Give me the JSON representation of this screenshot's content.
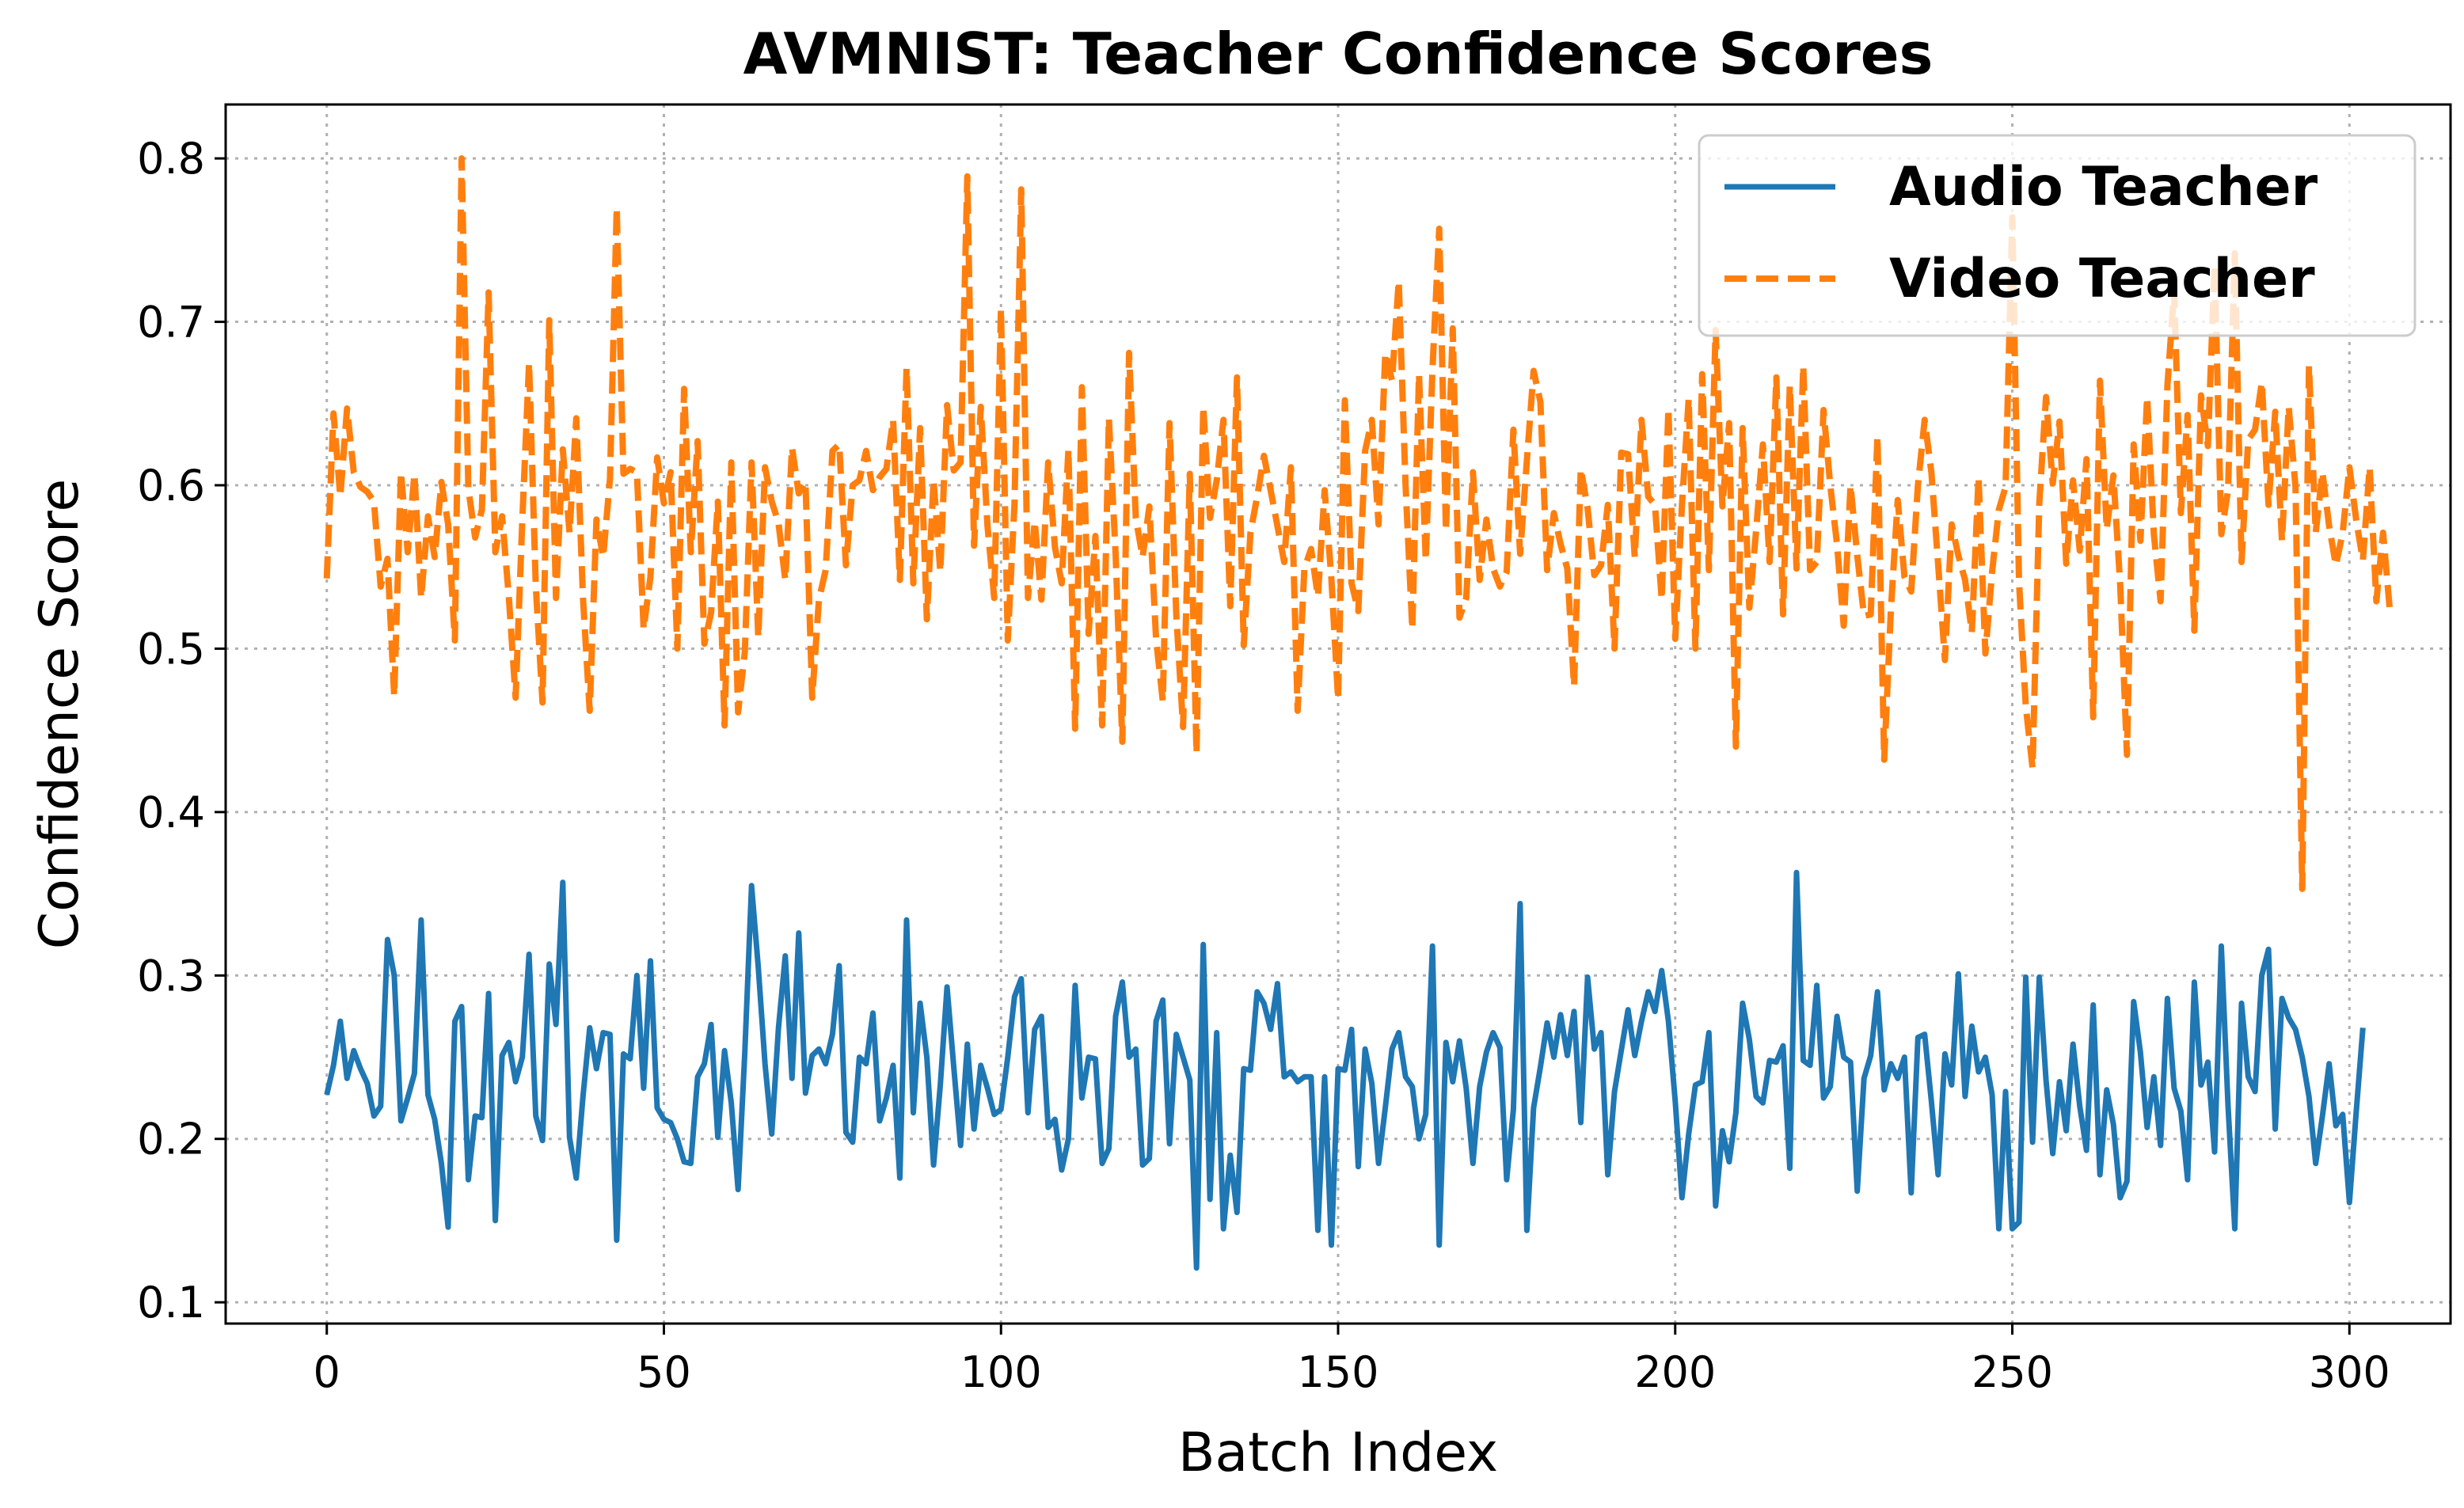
{
  "chart_data": {
    "type": "line",
    "title": "AVMNIST: Teacher Confidence Scores",
    "xlabel": "Batch Index",
    "ylabel": "Confidence Score",
    "xlim": [
      -15,
      315
    ],
    "ylim": [
      0.087,
      0.833
    ],
    "xticks": [
      0,
      50,
      100,
      150,
      200,
      250,
      300
    ],
    "yticks": [
      0.1,
      0.2,
      0.3,
      0.4,
      0.5,
      0.6,
      0.7,
      0.8
    ],
    "xtick_labels": [
      "0",
      "50",
      "100",
      "150",
      "200",
      "250",
      "300"
    ],
    "ytick_labels": [
      "0.1",
      "0.2",
      "0.3",
      "0.4",
      "0.5",
      "0.6",
      "0.7",
      "0.8"
    ],
    "grid": true,
    "legend_position": "top-right",
    "series": [
      {
        "name": "Audio Teacher",
        "color": "#1f77b4",
        "style": "solid",
        "x_start": 0,
        "x_step": 1,
        "values": [
          0.227,
          0.245,
          0.272,
          0.237,
          0.254,
          0.243,
          0.234,
          0.214,
          0.22,
          0.322,
          0.3,
          0.211,
          0.225,
          0.24,
          0.334,
          0.227,
          0.212,
          0.185,
          0.146,
          0.272,
          0.281,
          0.175,
          0.214,
          0.213,
          0.289,
          0.15,
          0.251,
          0.259,
          0.235,
          0.25,
          0.313,
          0.214,
          0.199,
          0.307,
          0.27,
          0.357,
          0.201,
          0.176,
          0.226,
          0.268,
          0.243,
          0.265,
          0.264,
          0.138,
          0.252,
          0.249,
          0.3,
          0.231,
          0.309,
          0.219,
          0.212,
          0.21,
          0.2,
          0.186,
          0.185,
          0.238,
          0.246,
          0.27,
          0.201,
          0.254,
          0.222,
          0.169,
          0.253,
          0.355,
          0.305,
          0.246,
          0.203,
          0.268,
          0.312,
          0.237,
          0.326,
          0.228,
          0.251,
          0.255,
          0.246,
          0.264,
          0.306,
          0.204,
          0.198,
          0.25,
          0.246,
          0.277,
          0.211,
          0.225,
          0.245,
          0.176,
          0.334,
          0.216,
          0.283,
          0.25,
          0.184,
          0.233,
          0.293,
          0.244,
          0.196,
          0.258,
          0.206,
          0.245,
          0.231,
          0.215,
          0.218,
          0.25,
          0.287,
          0.298,
          0.216,
          0.267,
          0.275,
          0.207,
          0.212,
          0.181,
          0.2,
          0.294,
          0.225,
          0.25,
          0.249,
          0.185,
          0.194,
          0.275,
          0.296,
          0.25,
          0.255,
          0.184,
          0.188,
          0.272,
          0.285,
          0.197,
          0.264,
          0.25,
          0.236,
          0.121,
          0.319,
          0.163,
          0.265,
          0.145,
          0.19,
          0.155,
          0.243,
          0.242,
          0.29,
          0.283,
          0.267,
          0.295,
          0.238,
          0.241,
          0.235,
          0.238,
          0.238,
          0.144,
          0.238,
          0.135,
          0.243,
          0.242,
          0.267,
          0.183,
          0.255,
          0.234,
          0.185,
          0.219,
          0.255,
          0.265,
          0.238,
          0.232,
          0.2,
          0.215,
          0.318,
          0.135,
          0.259,
          0.235,
          0.26,
          0.231,
          0.185,
          0.232,
          0.253,
          0.265,
          0.256,
          0.175,
          0.218,
          0.344,
          0.144,
          0.219,
          0.244,
          0.271,
          0.25,
          0.276,
          0.251,
          0.278,
          0.21,
          0.299,
          0.255,
          0.265,
          0.178,
          0.229,
          0.254,
          0.279,
          0.251,
          0.272,
          0.29,
          0.278,
          0.303,
          0.272,
          0.223,
          0.164,
          0.203,
          0.233,
          0.235,
          0.265,
          0.159,
          0.205,
          0.186,
          0.216,
          0.283,
          0.261,
          0.226,
          0.222,
          0.248,
          0.247,
          0.257,
          0.182,
          0.363,
          0.248,
          0.245,
          0.294,
          0.225,
          0.232,
          0.275,
          0.25,
          0.247,
          0.168,
          0.237,
          0.251,
          0.29,
          0.23,
          0.246,
          0.237,
          0.25,
          0.167,
          0.262,
          0.264,
          0.223,
          0.178,
          0.252,
          0.233,
          0.301,
          0.226,
          0.269,
          0.241,
          0.25,
          0.227,
          0.145,
          0.229,
          0.145,
          0.149,
          0.299,
          0.198,
          0.299,
          0.236,
          0.191,
          0.235,
          0.205,
          0.258,
          0.22,
          0.193,
          0.282,
          0.178,
          0.23,
          0.209,
          0.164,
          0.174,
          0.284,
          0.253,
          0.207,
          0.238,
          0.196,
          0.286,
          0.231,
          0.217,
          0.175,
          0.296,
          0.233,
          0.247,
          0.192,
          0.318,
          0.22,
          0.145,
          0.283,
          0.238,
          0.229,
          0.3,
          0.316,
          0.206,
          0.286,
          0.274,
          0.267,
          0.25,
          0.226,
          0.185,
          0.214,
          0.246,
          0.208,
          0.215,
          0.161,
          0.216,
          0.268
        ]
      },
      {
        "name": "Video Teacher",
        "color": "#ff7f0e",
        "style": "dashed",
        "x_start": 0,
        "x_step": 1,
        "values": [
          0.543,
          0.644,
          0.593,
          0.647,
          0.608,
          0.599,
          0.596,
          0.59,
          0.538,
          0.555,
          0.471,
          0.608,
          0.559,
          0.607,
          0.531,
          0.581,
          0.556,
          0.602,
          0.576,
          0.505,
          0.8,
          0.598,
          0.568,
          0.585,
          0.718,
          0.559,
          0.581,
          0.532,
          0.47,
          0.579,
          0.675,
          0.538,
          0.467,
          0.701,
          0.531,
          0.622,
          0.571,
          0.641,
          0.531,
          0.462,
          0.579,
          0.556,
          0.604,
          0.77,
          0.607,
          0.61,
          0.608,
          0.512,
          0.544,
          0.617,
          0.589,
          0.608,
          0.5,
          0.659,
          0.559,
          0.627,
          0.503,
          0.522,
          0.59,
          0.453,
          0.614,
          0.461,
          0.498,
          0.614,
          0.507,
          0.611,
          0.59,
          0.577,
          0.542,
          0.623,
          0.595,
          0.602,
          0.47,
          0.53,
          0.548,
          0.621,
          0.625,
          0.551,
          0.6,
          0.603,
          0.621,
          0.597,
          0.605,
          0.61,
          0.64,
          0.542,
          0.672,
          0.54,
          0.635,
          0.518,
          0.603,
          0.547,
          0.649,
          0.609,
          0.614,
          0.789,
          0.563,
          0.648,
          0.575,
          0.531,
          0.708,
          0.505,
          0.589,
          0.781,
          0.531,
          0.578,
          0.53,
          0.614,
          0.562,
          0.54,
          0.622,
          0.451,
          0.66,
          0.509,
          0.569,
          0.453,
          0.641,
          0.558,
          0.443,
          0.681,
          0.58,
          0.556,
          0.587,
          0.506,
          0.468,
          0.638,
          0.521,
          0.452,
          0.607,
          0.436,
          0.648,
          0.58,
          0.603,
          0.64,
          0.526,
          0.666,
          0.502,
          0.571,
          0.593,
          0.618,
          0.597,
          0.575,
          0.553,
          0.611,
          0.462,
          0.549,
          0.561,
          0.532,
          0.597,
          0.543,
          0.469,
          0.652,
          0.54,
          0.523,
          0.621,
          0.64,
          0.576,
          0.681,
          0.664,
          0.725,
          0.6,
          0.512,
          0.668,
          0.554,
          0.671,
          0.757,
          0.572,
          0.696,
          0.519,
          0.531,
          0.608,
          0.542,
          0.579,
          0.549,
          0.538,
          0.547,
          0.634,
          0.558,
          0.615,
          0.67,
          0.651,
          0.548,
          0.583,
          0.564,
          0.549,
          0.477,
          0.61,
          0.586,
          0.545,
          0.551,
          0.588,
          0.5,
          0.62,
          0.619,
          0.556,
          0.64,
          0.593,
          0.588,
          0.53,
          0.647,
          0.506,
          0.588,
          0.653,
          0.5,
          0.668,
          0.548,
          0.695,
          0.587,
          0.638,
          0.44,
          0.635,
          0.525,
          0.572,
          0.625,
          0.553,
          0.666,
          0.521,
          0.661,
          0.549,
          0.673,
          0.548,
          0.553,
          0.646,
          0.6,
          0.564,
          0.514,
          0.6,
          0.557,
          0.52,
          0.521,
          0.63,
          0.432,
          0.524,
          0.591,
          0.544,
          0.535,
          0.6,
          0.64,
          0.608,
          0.552,
          0.493,
          0.576,
          0.557,
          0.542,
          0.51,
          0.605,
          0.497,
          0.547,
          0.585,
          0.599,
          0.764,
          0.541,
          0.465,
          0.427,
          0.589,
          0.654,
          0.601,
          0.639,
          0.552,
          0.603,
          0.56,
          0.616,
          0.458,
          0.664,
          0.573,
          0.606,
          0.539,
          0.435,
          0.625,
          0.566,
          0.654,
          0.57,
          0.529,
          0.661,
          0.719,
          0.583,
          0.643,
          0.511,
          0.655,
          0.624,
          0.735,
          0.57,
          0.597,
          0.742,
          0.553,
          0.628,
          0.634,
          0.663,
          0.588,
          0.645,
          0.566,
          0.648,
          0.599,
          0.353,
          0.673,
          0.571,
          0.608,
          0.575,
          0.551,
          0.571,
          0.611,
          0.579,
          0.554,
          0.611,
          0.529,
          0.571,
          0.523
        ]
      }
    ]
  }
}
